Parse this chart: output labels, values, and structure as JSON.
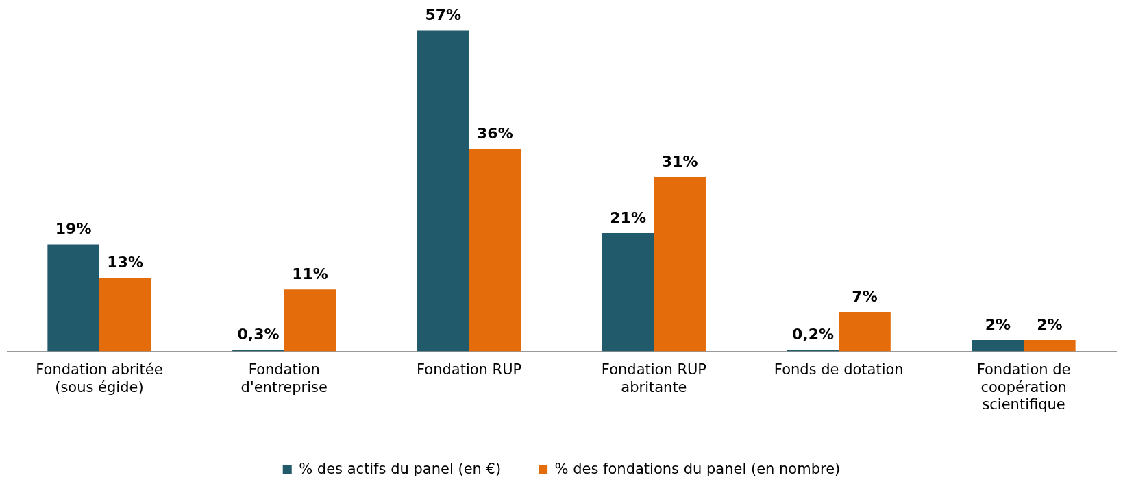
{
  "chart_data": {
    "type": "bar",
    "categories": [
      "Fondation abritée (sous égide)",
      "Fondation d'entreprise",
      "Fondation RUP",
      "Fondation RUP abritante",
      "Fonds de dotation",
      "Fondation de coopération scientifique"
    ],
    "series": [
      {
        "name": "% des actifs du panel (en €)",
        "color": "#215a6a",
        "values": [
          19,
          0.3,
          57,
          21,
          0.2,
          2
        ],
        "value_labels": [
          "19%",
          "0,3%",
          "57%",
          "21%",
          "0,2%",
          "2%"
        ]
      },
      {
        "name": "% des fondations du panel (en nombre)",
        "color": "#e46c0a",
        "values": [
          13,
          11,
          36,
          31,
          7,
          2
        ],
        "value_labels": [
          "13%",
          "11%",
          "36%",
          "31%",
          "7%",
          "2%"
        ]
      }
    ],
    "legend": "bottom",
    "grid": false
  }
}
